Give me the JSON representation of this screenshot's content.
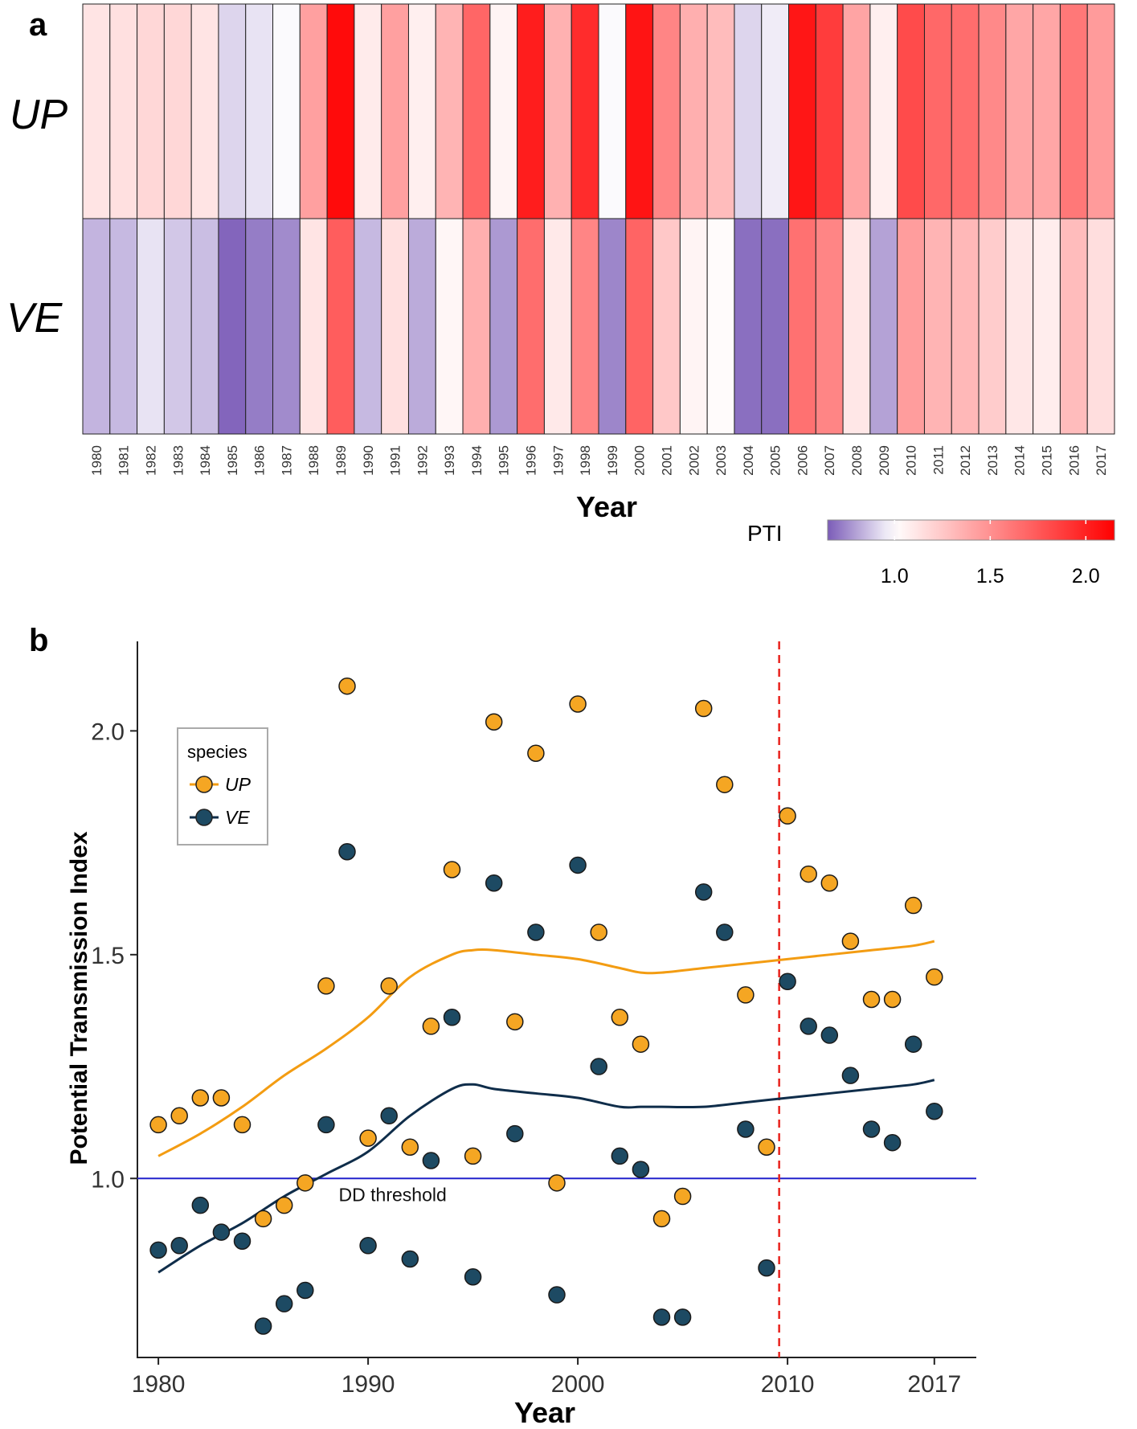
{
  "colors": {
    "low": "#7b5cb8",
    "mid": "#ffffff",
    "high": "#ff0000",
    "up_point": "#f5a623",
    "ve_point": "#1d4a63",
    "up_line": "#f39c12",
    "ve_line": "#0f2d4a",
    "threshold_line": "#2222cc",
    "vline": "#e8231d"
  },
  "chart_data": [
    {
      "id": "a",
      "panel_label": "a",
      "type": "heatmap",
      "xlabel": "Year",
      "rows": [
        "UP",
        "VE"
      ],
      "columns": [
        "1980",
        "1981",
        "1982",
        "1983",
        "1984",
        "1985",
        "1986",
        "1987",
        "1988",
        "1989",
        "1990",
        "1991",
        "1992",
        "1993",
        "1994",
        "1995",
        "1996",
        "1997",
        "1998",
        "1999",
        "2000",
        "2001",
        "2002",
        "2003",
        "2004",
        "2005",
        "2006",
        "2007",
        "2008",
        "2009",
        "2010",
        "2011",
        "2012",
        "2013",
        "2014",
        "2015",
        "2016",
        "2017"
      ],
      "values": {
        "UP": [
          1.12,
          1.14,
          1.18,
          1.18,
          1.12,
          0.91,
          0.94,
          0.99,
          1.43,
          2.1,
          1.09,
          1.43,
          1.07,
          1.34,
          1.69,
          1.05,
          2.02,
          1.35,
          1.95,
          0.99,
          2.06,
          1.55,
          1.36,
          1.3,
          0.91,
          0.96,
          2.05,
          1.88,
          1.41,
          1.07,
          1.81,
          1.68,
          1.66,
          1.53,
          1.4,
          1.4,
          1.61,
          1.45
        ],
        "VE": [
          0.84,
          0.85,
          0.94,
          0.88,
          0.86,
          0.67,
          0.72,
          0.75,
          1.12,
          1.73,
          0.85,
          1.14,
          0.82,
          1.04,
          1.36,
          0.78,
          1.66,
          1.1,
          1.55,
          0.74,
          1.7,
          1.25,
          1.05,
          1.02,
          0.69,
          0.69,
          1.64,
          1.55,
          1.11,
          0.8,
          1.44,
          1.34,
          1.32,
          1.23,
          1.11,
          1.08,
          1.3,
          1.15
        ]
      },
      "legend": {
        "title": "PTI",
        "range": [
          0.65,
          2.15
        ],
        "midpoint": 1.0,
        "ticks": [
          1.0,
          1.5,
          2.0
        ],
        "tick_labels": [
          "1.0",
          "1.5",
          "2.0"
        ]
      }
    },
    {
      "id": "b",
      "panel_label": "b",
      "type": "scatter",
      "xlabel": "Year",
      "ylabel": "Potential Transmission Index",
      "xlim": [
        1979,
        2019
      ],
      "ylim": [
        0.6,
        2.2
      ],
      "x_ticks": [
        1980,
        1990,
        2000,
        2010,
        2017
      ],
      "x_tick_labels": [
        "1980",
        "1990",
        "2000",
        "2010",
        "2017"
      ],
      "y_ticks": [
        1.0,
        1.5,
        2.0
      ],
      "y_tick_labels": [
        "1.0",
        "1.5",
        "2.0"
      ],
      "legend": {
        "title": "species",
        "entries": [
          "UP",
          "VE"
        ],
        "position": "top-left"
      },
      "x": [
        1980,
        1981,
        1982,
        1983,
        1984,
        1985,
        1986,
        1987,
        1988,
        1989,
        1990,
        1991,
        1992,
        1993,
        1994,
        1995,
        1996,
        1997,
        1998,
        1999,
        2000,
        2001,
        2002,
        2003,
        2004,
        2005,
        2006,
        2007,
        2008,
        2009,
        2010,
        2011,
        2012,
        2013,
        2014,
        2015,
        2016,
        2017
      ],
      "series": [
        {
          "name": "UP",
          "values": [
            1.12,
            1.14,
            1.18,
            1.18,
            1.12,
            0.91,
            0.94,
            0.99,
            1.43,
            2.1,
            1.09,
            1.43,
            1.07,
            1.34,
            1.69,
            1.05,
            2.02,
            1.35,
            1.95,
            0.99,
            2.06,
            1.55,
            1.36,
            1.3,
            0.91,
            0.96,
            2.05,
            1.88,
            1.41,
            1.07,
            1.81,
            1.68,
            1.66,
            1.53,
            1.4,
            1.4,
            1.61,
            1.45
          ],
          "trend": {
            "x": [
              1980,
              1982,
              1984,
              1986,
              1988,
              1990,
              1992,
              1994,
              1995,
              1996,
              1998,
              2000,
              2002,
              2003,
              2004,
              2006,
              2008,
              2010,
              2012,
              2014,
              2016,
              2017
            ],
            "y": [
              1.05,
              1.1,
              1.16,
              1.23,
              1.29,
              1.36,
              1.45,
              1.5,
              1.51,
              1.51,
              1.5,
              1.49,
              1.47,
              1.46,
              1.46,
              1.47,
              1.48,
              1.49,
              1.5,
              1.51,
              1.52,
              1.53
            ]
          }
        },
        {
          "name": "VE",
          "values": [
            0.84,
            0.85,
            0.94,
            0.88,
            0.86,
            0.67,
            0.72,
            0.75,
            1.12,
            1.73,
            0.85,
            1.14,
            0.82,
            1.04,
            1.36,
            0.78,
            1.66,
            1.1,
            1.55,
            0.74,
            1.7,
            1.25,
            1.05,
            1.02,
            0.69,
            0.69,
            1.64,
            1.55,
            1.11,
            0.8,
            1.44,
            1.34,
            1.32,
            1.23,
            1.11,
            1.08,
            1.3,
            1.15
          ],
          "trend": {
            "x": [
              1980,
              1982,
              1984,
              1986,
              1988,
              1990,
              1992,
              1994,
              1995,
              1996,
              1998,
              2000,
              2002,
              2003,
              2004,
              2006,
              2008,
              2010,
              2012,
              2014,
              2016,
              2017
            ],
            "y": [
              0.79,
              0.85,
              0.9,
              0.96,
              1.01,
              1.06,
              1.14,
              1.2,
              1.21,
              1.2,
              1.19,
              1.18,
              1.16,
              1.16,
              1.16,
              1.16,
              1.17,
              1.18,
              1.19,
              1.2,
              1.21,
              1.22
            ]
          }
        }
      ],
      "annotations": [
        {
          "type": "hline",
          "y": 1.0,
          "label": "DD threshold"
        },
        {
          "type": "vline",
          "x": 2009.6,
          "style": "dashed"
        }
      ]
    }
  ]
}
